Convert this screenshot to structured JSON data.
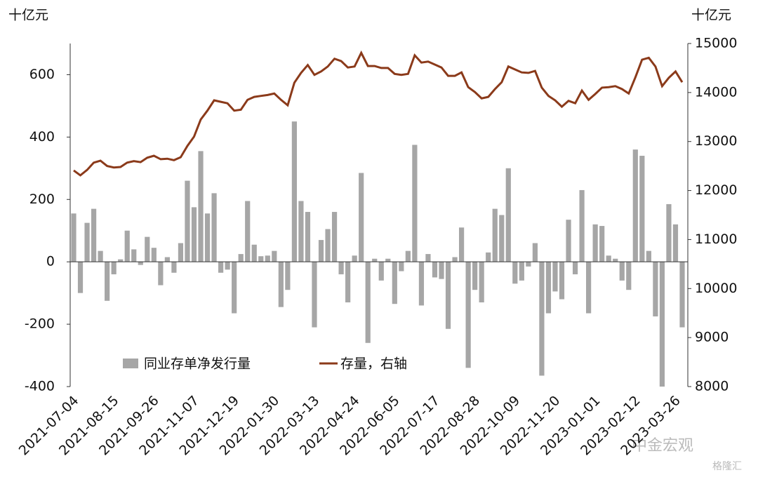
{
  "chart_data": {
    "type": "bar",
    "y_label": "十亿元",
    "y2_label": "十亿元",
    "categories": [
      "2021-07-04",
      null,
      null,
      null,
      null,
      null,
      "2021-08-15",
      null,
      null,
      null,
      null,
      null,
      "2021-09-26",
      null,
      null,
      null,
      null,
      null,
      "2021-11-07",
      null,
      null,
      null,
      null,
      null,
      "2021-12-19",
      null,
      null,
      null,
      null,
      null,
      "2022-01-30",
      null,
      null,
      null,
      null,
      null,
      "2022-03-13",
      null,
      null,
      null,
      null,
      null,
      "2022-04-24",
      null,
      null,
      null,
      null,
      null,
      "2022-06-05",
      null,
      null,
      null,
      null,
      null,
      "2022-07-17",
      null,
      null,
      null,
      null,
      null,
      "2022-08-28",
      null,
      null,
      null,
      null,
      null,
      "2022-10-09",
      null,
      null,
      null,
      null,
      null,
      "2022-11-20",
      null,
      null,
      null,
      null,
      null,
      "2023-01-01",
      null,
      null,
      null,
      null,
      null,
      "2023-02-12",
      null,
      null,
      null,
      null,
      null,
      "2023-03-26",
      null
    ],
    "series": [
      {
        "name": "同业存单净发行量",
        "type": "bar",
        "color": "#a6a6a6",
        "values": [
          155,
          -100,
          125,
          170,
          35,
          -125,
          -40,
          8,
          100,
          40,
          -10,
          80,
          45,
          -75,
          15,
          -35,
          60,
          260,
          175,
          355,
          155,
          220,
          -35,
          -25,
          -165,
          25,
          195,
          55,
          18,
          20,
          35,
          -145,
          -90,
          450,
          195,
          160,
          -210,
          70,
          105,
          160,
          -40,
          -130,
          20,
          285,
          -260,
          10,
          -60,
          10,
          -135,
          -30,
          35,
          375,
          -140,
          25,
          -50,
          -55,
          -215,
          15,
          110,
          -340,
          -90,
          -130,
          30,
          170,
          150,
          300,
          -70,
          -60,
          -15,
          60,
          -365,
          -165,
          -95,
          -120,
          135,
          -40,
          230,
          -165,
          120,
          115,
          20,
          10,
          -60,
          -90,
          360,
          340,
          35,
          -175,
          -400,
          185,
          120,
          -210
        ]
      },
      {
        "name": "存量，右轴",
        "type": "line",
        "axis": "y2",
        "color": "#8b3a1a",
        "values": [
          12410,
          12310,
          12420,
          12570,
          12610,
          12500,
          12470,
          12480,
          12570,
          12600,
          12580,
          12670,
          12710,
          12640,
          12650,
          12620,
          12680,
          12910,
          13100,
          13450,
          13630,
          13840,
          13810,
          13780,
          13630,
          13650,
          13850,
          13910,
          13930,
          13950,
          13980,
          13850,
          13740,
          14200,
          14400,
          14560,
          14360,
          14430,
          14530,
          14690,
          14640,
          14510,
          14530,
          14810,
          14540,
          14540,
          14500,
          14500,
          14380,
          14360,
          14380,
          14760,
          14610,
          14630,
          14570,
          14510,
          14340,
          14340,
          14410,
          14110,
          14010,
          13880,
          13910,
          14070,
          14210,
          14530,
          14470,
          14410,
          14400,
          14440,
          14100,
          13930,
          13840,
          13710,
          13830,
          13780,
          14040,
          13850,
          13970,
          14100,
          14110,
          14130,
          14070,
          13980,
          14310,
          14670,
          14710,
          14530,
          14130,
          14300,
          14430,
          14210
        ]
      }
    ],
    "ylim": [
      -400,
      700
    ],
    "yticks": [
      -400,
      -200,
      0,
      200,
      400,
      600
    ],
    "y2lim": [
      8000,
      15000
    ],
    "y2ticks": [
      8000,
      9000,
      10000,
      11000,
      12000,
      13000,
      14000,
      15000
    ],
    "grid": false,
    "annotations": [
      "中金宏观",
      "格隆汇"
    ]
  }
}
